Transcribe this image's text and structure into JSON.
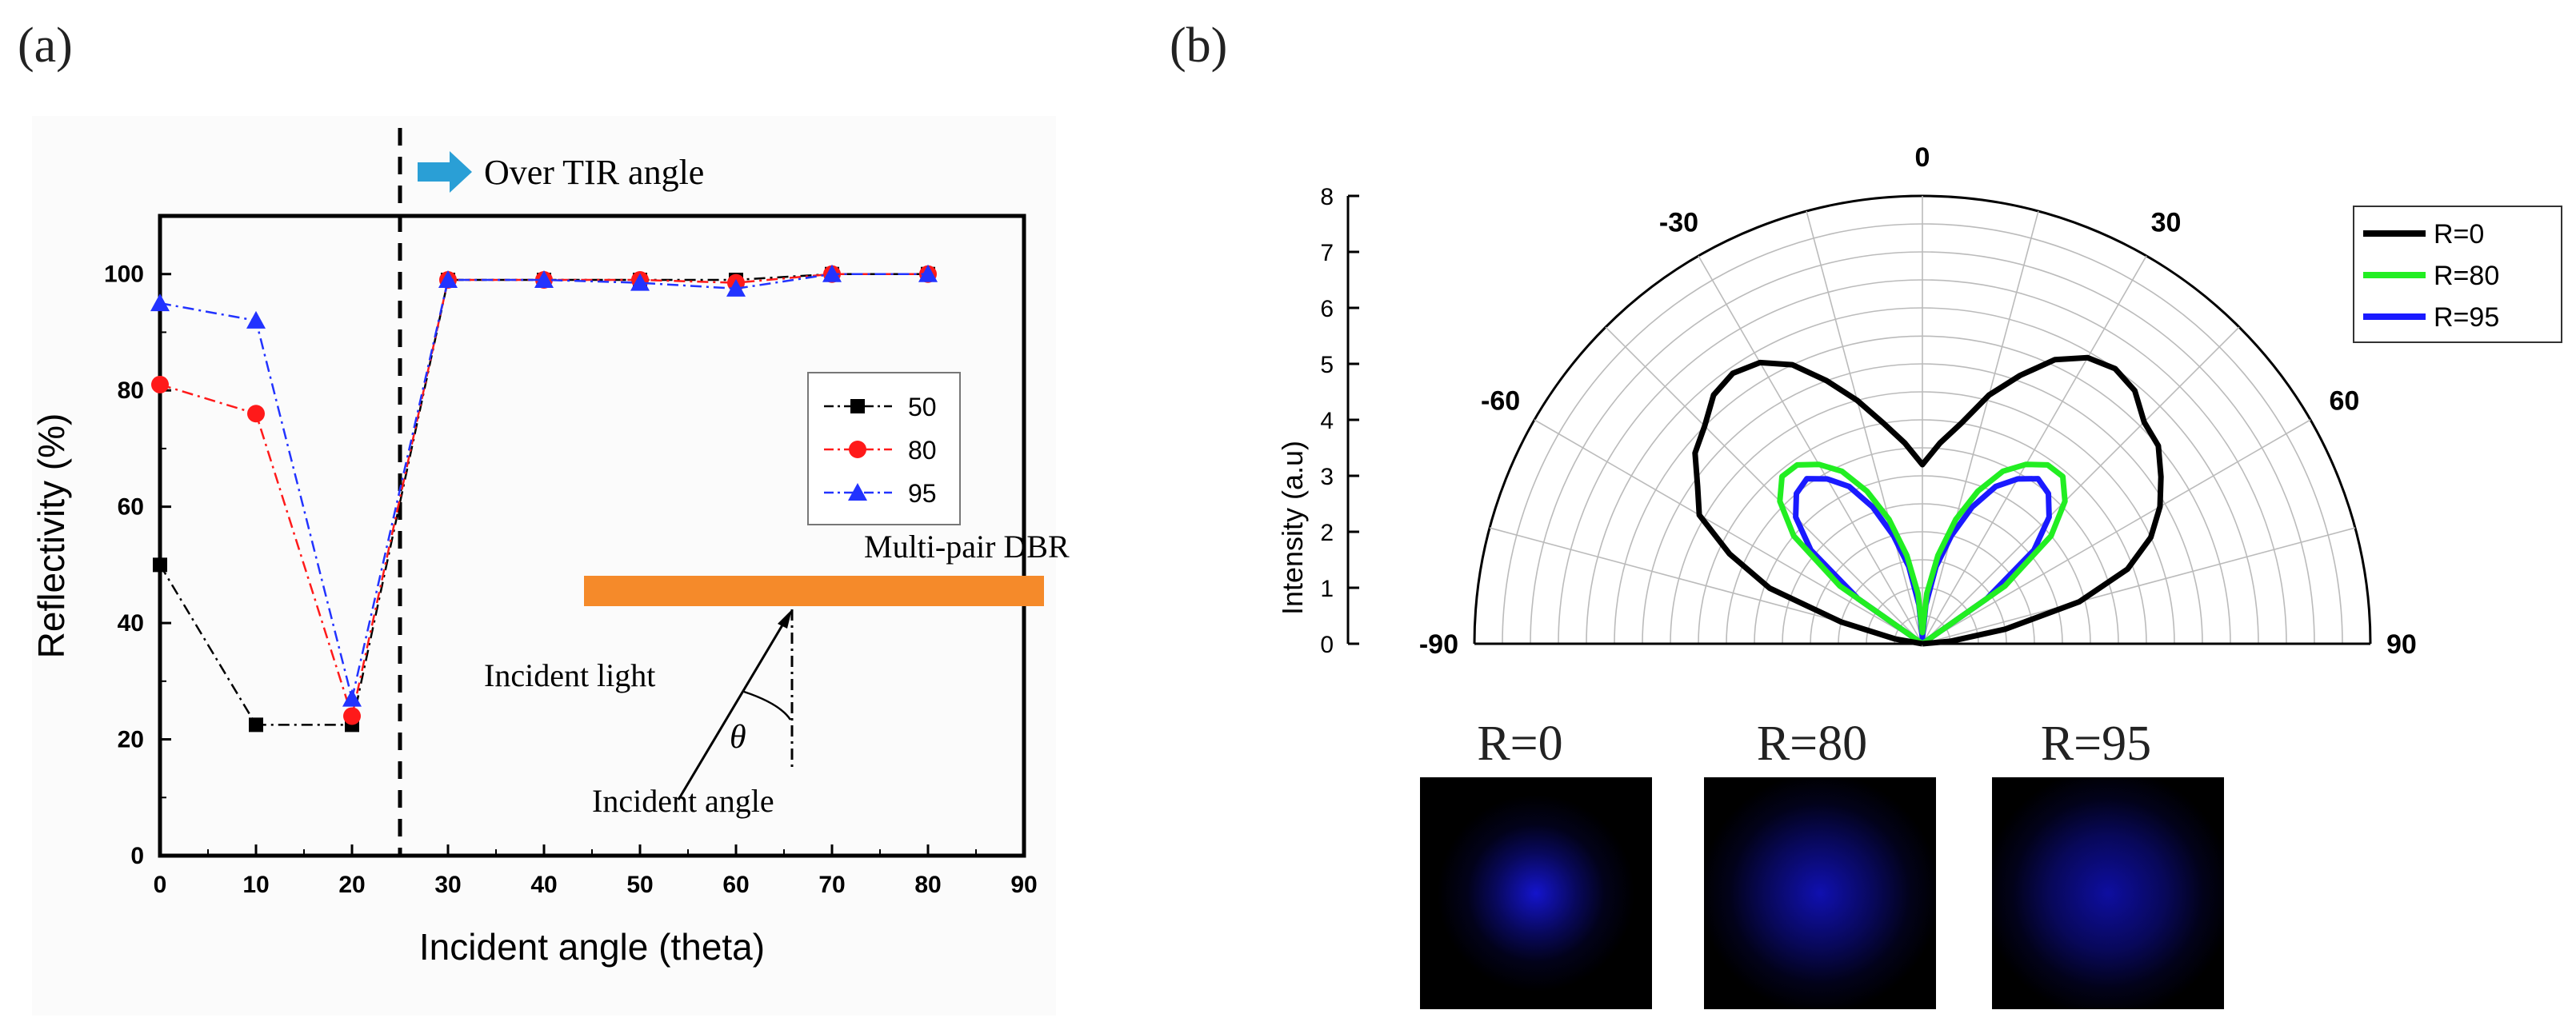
{
  "panel_labels": {
    "a": "(a)",
    "b": "(b)"
  },
  "chart_data": [
    {
      "type": "line",
      "title": "",
      "xlabel": "Incident angle (theta)",
      "ylabel": "Reflectivity (%)",
      "xlim": [
        0,
        90
      ],
      "ylim": [
        0,
        110
      ],
      "xticks": [
        0,
        10,
        20,
        30,
        40,
        50,
        60,
        70,
        80,
        90
      ],
      "yticks": [
        0,
        20,
        40,
        60,
        80,
        100
      ],
      "x": [
        0,
        10,
        20,
        30,
        40,
        50,
        60,
        70,
        80
      ],
      "series": [
        {
          "name": "50",
          "color": "#000000",
          "marker": "square",
          "values": [
            50,
            22.5,
            22.5,
            99,
            99,
            99,
            99,
            100,
            100
          ]
        },
        {
          "name": "80",
          "color": "#ff1a1a",
          "marker": "circle",
          "values": [
            81,
            76,
            24,
            99,
            99,
            99,
            98.5,
            100,
            100
          ]
        },
        {
          "name": "95",
          "color": "#2233ff",
          "marker": "triangle",
          "values": [
            95,
            92,
            27,
            99,
            99,
            98.5,
            97.5,
            100,
            100
          ]
        }
      ],
      "annotations": {
        "tir_line_x": 25,
        "over_tir": "Over TIR angle",
        "dbr": "Multi-pair DBR",
        "incident_light": "Incident light",
        "incident_angle": "Incident angle",
        "theta": "θ"
      },
      "arrow_color": "#2a9fd6",
      "dbr_color": "#f58a2a"
    },
    {
      "type": "polar",
      "ylabel": "Intensity (a.u)",
      "rlim": [
        0,
        8
      ],
      "rticks": [
        0,
        1,
        2,
        3,
        4,
        5,
        6,
        7,
        8
      ],
      "angle_labels": [
        "-90",
        "-60",
        "-30",
        "0",
        "30",
        "60",
        "90"
      ],
      "angles_deg": [
        -90,
        -60,
        -30,
        0,
        30,
        60,
        90
      ],
      "series": [
        {
          "name": "R=0",
          "color": "#000000",
          "angles": [
            -90,
            -85,
            -80,
            -75,
            -70,
            -65,
            -60,
            -55,
            -50,
            -45,
            -40,
            -35,
            -30,
            -25,
            -20,
            -15,
            -10,
            -5,
            0,
            5,
            10,
            15,
            20,
            25,
            30,
            35,
            40,
            45,
            50,
            55,
            60,
            65,
            70,
            75,
            80,
            85,
            90
          ],
          "values": [
            0,
            0,
            0.5,
            1.5,
            2.9,
            3.8,
            4.6,
            4.9,
            5.3,
            5.5,
            5.8,
            5.9,
            5.8,
            5.5,
            5.0,
            4.5,
            4.0,
            3.6,
            3.2,
            3.6,
            4.0,
            4.6,
            5.1,
            5.6,
            5.9,
            6.0,
            5.9,
            5.6,
            5.5,
            5.2,
            4.9,
            4.5,
            3.9,
            2.9,
            1.5,
            0.5,
            0
          ]
        },
        {
          "name": "R=80",
          "color": "#22ee22",
          "angles": [
            -90,
            -85,
            -80,
            -75,
            -70,
            -65,
            -60,
            -55,
            -50,
            -45,
            -40,
            -35,
            -30,
            -25,
            -20,
            -15,
            -10,
            -5,
            0,
            5,
            10,
            15,
            20,
            25,
            30,
            35,
            40,
            45,
            50,
            55,
            60,
            65,
            70,
            75,
            80,
            85,
            90
          ],
          "values": [
            0,
            0,
            0,
            0,
            0,
            0,
            0,
            1.8,
            3.0,
            3.6,
            3.9,
            3.9,
            3.7,
            3.4,
            2.9,
            2.3,
            1.6,
            0.9,
            0.2,
            0.9,
            1.6,
            2.3,
            2.9,
            3.4,
            3.7,
            3.9,
            3.9,
            3.6,
            3.0,
            1.8,
            0,
            0,
            0,
            0,
            0,
            0,
            0
          ]
        },
        {
          "name": "R=95",
          "color": "#1a1aff",
          "angles": [
            -90,
            -85,
            -80,
            -75,
            -70,
            -65,
            -60,
            -55,
            -50,
            -45,
            -40,
            -35,
            -30,
            -25,
            -20,
            -15,
            -10,
            -5,
            0,
            5,
            10,
            15,
            20,
            25,
            30,
            35,
            40,
            45,
            50,
            55,
            60,
            65,
            70,
            75,
            80,
            85,
            90
          ],
          "values": [
            0,
            0,
            0,
            0,
            0,
            0,
            0,
            1.4,
            2.6,
            3.2,
            3.5,
            3.6,
            3.4,
            3.1,
            2.6,
            2.0,
            1.4,
            0.7,
            0.1,
            0.7,
            1.4,
            2.0,
            2.6,
            3.1,
            3.4,
            3.6,
            3.5,
            3.2,
            2.6,
            1.4,
            0,
            0,
            0,
            0,
            0,
            0,
            0
          ]
        }
      ]
    }
  ],
  "thumbnails": [
    {
      "label": "R=0",
      "glow": "#1414cc",
      "radius_pct": 42
    },
    {
      "label": "R=80",
      "glow": "#1010b0",
      "radius_pct": 55
    },
    {
      "label": "R=95",
      "glow": "#0e0ea0",
      "radius_pct": 58
    }
  ]
}
